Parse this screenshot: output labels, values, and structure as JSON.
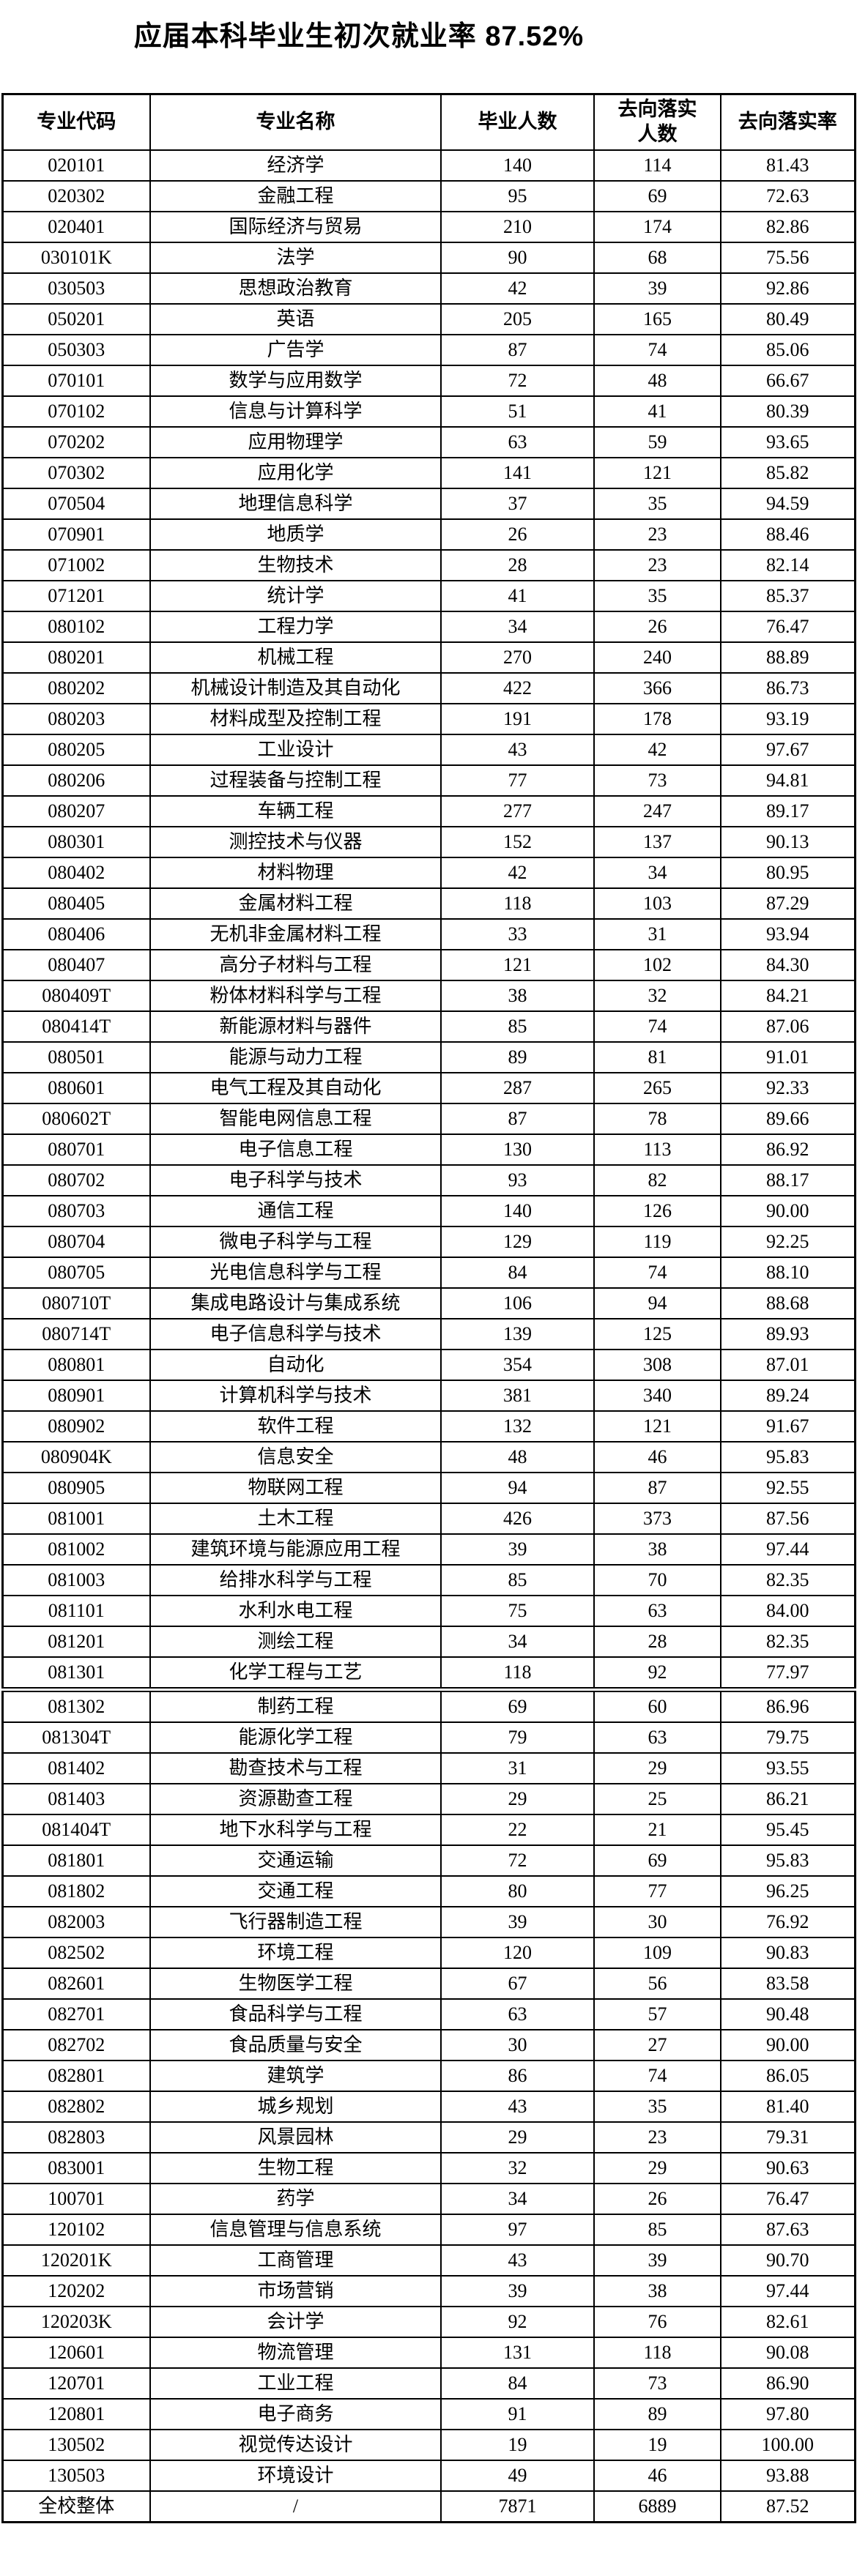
{
  "title": "应届本科毕业生初次就业率 87.52%",
  "table": {
    "headers": [
      "专业代码",
      "专业名称",
      "毕业人数",
      "去向落实\n人数",
      "去向落实率"
    ],
    "section_break_before_code": "081302",
    "rows": [
      [
        "020101",
        "经济学",
        "140",
        "114",
        "81.43"
      ],
      [
        "020302",
        "金融工程",
        "95",
        "69",
        "72.63"
      ],
      [
        "020401",
        "国际经济与贸易",
        "210",
        "174",
        "82.86"
      ],
      [
        "030101K",
        "法学",
        "90",
        "68",
        "75.56"
      ],
      [
        "030503",
        "思想政治教育",
        "42",
        "39",
        "92.86"
      ],
      [
        "050201",
        "英语",
        "205",
        "165",
        "80.49"
      ],
      [
        "050303",
        "广告学",
        "87",
        "74",
        "85.06"
      ],
      [
        "070101",
        "数学与应用数学",
        "72",
        "48",
        "66.67"
      ],
      [
        "070102",
        "信息与计算科学",
        "51",
        "41",
        "80.39"
      ],
      [
        "070202",
        "应用物理学",
        "63",
        "59",
        "93.65"
      ],
      [
        "070302",
        "应用化学",
        "141",
        "121",
        "85.82"
      ],
      [
        "070504",
        "地理信息科学",
        "37",
        "35",
        "94.59"
      ],
      [
        "070901",
        "地质学",
        "26",
        "23",
        "88.46"
      ],
      [
        "071002",
        "生物技术",
        "28",
        "23",
        "82.14"
      ],
      [
        "071201",
        "统计学",
        "41",
        "35",
        "85.37"
      ],
      [
        "080102",
        "工程力学",
        "34",
        "26",
        "76.47"
      ],
      [
        "080201",
        "机械工程",
        "270",
        "240",
        "88.89"
      ],
      [
        "080202",
        "机械设计制造及其自动化",
        "422",
        "366",
        "86.73"
      ],
      [
        "080203",
        "材料成型及控制工程",
        "191",
        "178",
        "93.19"
      ],
      [
        "080205",
        "工业设计",
        "43",
        "42",
        "97.67"
      ],
      [
        "080206",
        "过程装备与控制工程",
        "77",
        "73",
        "94.81"
      ],
      [
        "080207",
        "车辆工程",
        "277",
        "247",
        "89.17"
      ],
      [
        "080301",
        "测控技术与仪器",
        "152",
        "137",
        "90.13"
      ],
      [
        "080402",
        "材料物理",
        "42",
        "34",
        "80.95"
      ],
      [
        "080405",
        "金属材料工程",
        "118",
        "103",
        "87.29"
      ],
      [
        "080406",
        "无机非金属材料工程",
        "33",
        "31",
        "93.94"
      ],
      [
        "080407",
        "高分子材料与工程",
        "121",
        "102",
        "84.30"
      ],
      [
        "080409T",
        "粉体材料科学与工程",
        "38",
        "32",
        "84.21"
      ],
      [
        "080414T",
        "新能源材料与器件",
        "85",
        "74",
        "87.06"
      ],
      [
        "080501",
        "能源与动力工程",
        "89",
        "81",
        "91.01"
      ],
      [
        "080601",
        "电气工程及其自动化",
        "287",
        "265",
        "92.33"
      ],
      [
        "080602T",
        "智能电网信息工程",
        "87",
        "78",
        "89.66"
      ],
      [
        "080701",
        "电子信息工程",
        "130",
        "113",
        "86.92"
      ],
      [
        "080702",
        "电子科学与技术",
        "93",
        "82",
        "88.17"
      ],
      [
        "080703",
        "通信工程",
        "140",
        "126",
        "90.00"
      ],
      [
        "080704",
        "微电子科学与工程",
        "129",
        "119",
        "92.25"
      ],
      [
        "080705",
        "光电信息科学与工程",
        "84",
        "74",
        "88.10"
      ],
      [
        "080710T",
        "集成电路设计与集成系统",
        "106",
        "94",
        "88.68"
      ],
      [
        "080714T",
        "电子信息科学与技术",
        "139",
        "125",
        "89.93"
      ],
      [
        "080801",
        "自动化",
        "354",
        "308",
        "87.01"
      ],
      [
        "080901",
        "计算机科学与技术",
        "381",
        "340",
        "89.24"
      ],
      [
        "080902",
        "软件工程",
        "132",
        "121",
        "91.67"
      ],
      [
        "080904K",
        "信息安全",
        "48",
        "46",
        "95.83"
      ],
      [
        "080905",
        "物联网工程",
        "94",
        "87",
        "92.55"
      ],
      [
        "081001",
        "土木工程",
        "426",
        "373",
        "87.56"
      ],
      [
        "081002",
        "建筑环境与能源应用工程",
        "39",
        "38",
        "97.44"
      ],
      [
        "081003",
        "给排水科学与工程",
        "85",
        "70",
        "82.35"
      ],
      [
        "081101",
        "水利水电工程",
        "75",
        "63",
        "84.00"
      ],
      [
        "081201",
        "测绘工程",
        "34",
        "28",
        "82.35"
      ],
      [
        "081301",
        "化学工程与工艺",
        "118",
        "92",
        "77.97"
      ],
      [
        "081302",
        "制药工程",
        "69",
        "60",
        "86.96"
      ],
      [
        "081304T",
        "能源化学工程",
        "79",
        "63",
        "79.75"
      ],
      [
        "081402",
        "勘查技术与工程",
        "31",
        "29",
        "93.55"
      ],
      [
        "081403",
        "资源勘查工程",
        "29",
        "25",
        "86.21"
      ],
      [
        "081404T",
        "地下水科学与工程",
        "22",
        "21",
        "95.45"
      ],
      [
        "081801",
        "交通运输",
        "72",
        "69",
        "95.83"
      ],
      [
        "081802",
        "交通工程",
        "80",
        "77",
        "96.25"
      ],
      [
        "082003",
        "飞行器制造工程",
        "39",
        "30",
        "76.92"
      ],
      [
        "082502",
        "环境工程",
        "120",
        "109",
        "90.83"
      ],
      [
        "082601",
        "生物医学工程",
        "67",
        "56",
        "83.58"
      ],
      [
        "082701",
        "食品科学与工程",
        "63",
        "57",
        "90.48"
      ],
      [
        "082702",
        "食品质量与安全",
        "30",
        "27",
        "90.00"
      ],
      [
        "082801",
        "建筑学",
        "86",
        "74",
        "86.05"
      ],
      [
        "082802",
        "城乡规划",
        "43",
        "35",
        "81.40"
      ],
      [
        "082803",
        "风景园林",
        "29",
        "23",
        "79.31"
      ],
      [
        "083001",
        "生物工程",
        "32",
        "29",
        "90.63"
      ],
      [
        "100701",
        "药学",
        "34",
        "26",
        "76.47"
      ],
      [
        "120102",
        "信息管理与信息系统",
        "97",
        "85",
        "87.63"
      ],
      [
        "120201K",
        "工商管理",
        "43",
        "39",
        "90.70"
      ],
      [
        "120202",
        "市场营销",
        "39",
        "38",
        "97.44"
      ],
      [
        "120203K",
        "会计学",
        "92",
        "76",
        "82.61"
      ],
      [
        "120601",
        "物流管理",
        "131",
        "118",
        "90.08"
      ],
      [
        "120701",
        "工业工程",
        "84",
        "73",
        "86.90"
      ],
      [
        "120801",
        "电子商务",
        "91",
        "89",
        "97.80"
      ],
      [
        "130502",
        "视觉传达设计",
        "19",
        "19",
        "100.00"
      ],
      [
        "130503",
        "环境设计",
        "49",
        "46",
        "93.88"
      ]
    ],
    "total": {
      "label": "全校整体",
      "name": "/",
      "graduates": "7871",
      "placed": "6889",
      "rate": "87.52"
    }
  }
}
